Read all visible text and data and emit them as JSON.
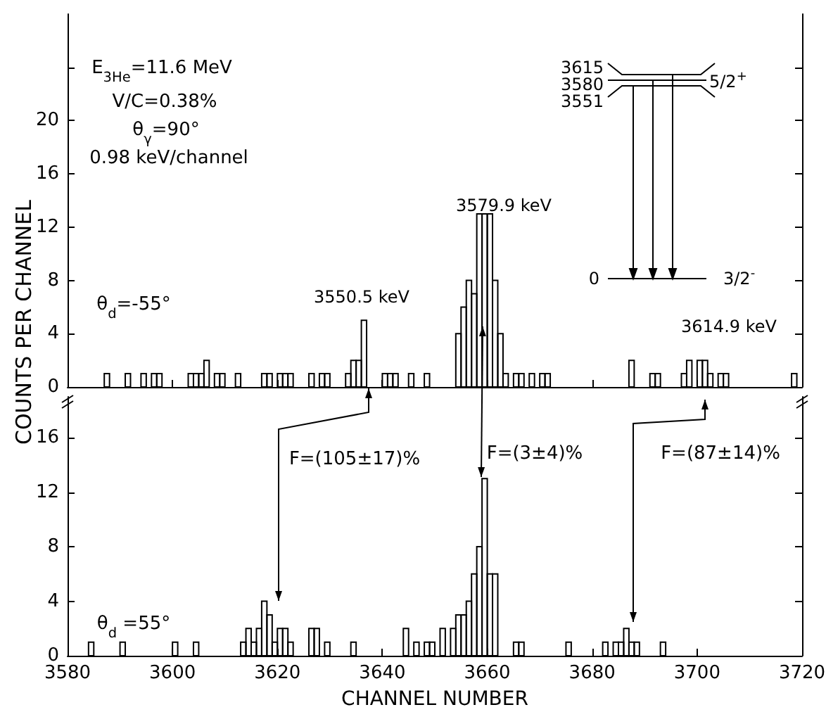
{
  "chart_data": [
    {
      "type": "histogram",
      "ylabel": "COUNTS PER CHANNEL",
      "color": "#000000",
      "grid": false,
      "tick_labels": "y",
      "bins": [
        3580,
        3581,
        3582,
        3583,
        3584,
        3585,
        3586,
        3587,
        3588,
        3589,
        3590,
        3591,
        3592,
        3593,
        3594,
        3595,
        3596,
        3597,
        3598,
        3599,
        3600,
        3601,
        3602,
        3603,
        3604,
        3605,
        3606,
        3607,
        3608,
        3609,
        3610,
        3611,
        3612,
        3613,
        3614,
        3615,
        3616,
        3617,
        3618,
        3619,
        3620,
        3621,
        3622,
        3623,
        3624,
        3625,
        3626,
        3627,
        3628,
        3629,
        3630,
        3631,
        3632,
        3633,
        3634,
        3635,
        3636,
        3637,
        3638,
        3639,
        3640,
        3641,
        3642,
        3643,
        3644,
        3645,
        3646,
        3647,
        3648,
        3649,
        3650,
        3651,
        3652,
        3653,
        3654,
        3655,
        3656,
        3657,
        3658,
        3659,
        3660,
        3661,
        3662,
        3663,
        3664,
        3665,
        3666,
        3667,
        3668,
        3669,
        3670,
        3671,
        3672,
        3673,
        3674,
        3675,
        3676,
        3677,
        3678,
        3679,
        3680,
        3681,
        3682,
        3683,
        3684,
        3685,
        3686,
        3687,
        3688,
        3689,
        3690,
        3691,
        3692,
        3693,
        3694,
        3695,
        3696,
        3697,
        3698,
        3699,
        3700,
        3701,
        3702,
        3703,
        3704,
        3705,
        3706,
        3707,
        3708,
        3709,
        3710,
        3711,
        3712,
        3713,
        3714,
        3715,
        3716,
        3717,
        3718,
        3719,
        3720
      ],
      "values": [
        0,
        0,
        0,
        0,
        0,
        0,
        0,
        1,
        0,
        0,
        0,
        1,
        0,
        0,
        1,
        0,
        1,
        1,
        0,
        0,
        0,
        0,
        0,
        1,
        1,
        1,
        2,
        0,
        1,
        1,
        0,
        0,
        1,
        0,
        0,
        0,
        0,
        1,
        1,
        0,
        1,
        1,
        1,
        0,
        0,
        0,
        1,
        0,
        1,
        1,
        0,
        0,
        0,
        1,
        2,
        2,
        5,
        0,
        0,
        0,
        1,
        1,
        1,
        0,
        0,
        1,
        0,
        0,
        1,
        0,
        0,
        0,
        0,
        0,
        4,
        6,
        8,
        7,
        13,
        13,
        13,
        8,
        4,
        1,
        0,
        1,
        1,
        0,
        1,
        0,
        1,
        1,
        0,
        0,
        0,
        0,
        0,
        0,
        0,
        0,
        0,
        0,
        0,
        0,
        0,
        0,
        0,
        2,
        0,
        0,
        0,
        1,
        1,
        0,
        0,
        0,
        0,
        1,
        2,
        0,
        2,
        2,
        1,
        0,
        1,
        1,
        0,
        0,
        0,
        0,
        0,
        0,
        0,
        0,
        0,
        0,
        0,
        0,
        1,
        0
      ],
      "xlim": [
        3580,
        3720
      ],
      "xticks": [
        {
          "value": 3580,
          "label": null
        },
        {
          "value": 3600,
          "label": null
        },
        {
          "value": 3620,
          "label": null
        },
        {
          "value": 3640,
          "label": null
        },
        {
          "value": 3660,
          "label": null
        },
        {
          "value": 3680,
          "label": null
        },
        {
          "value": 3700,
          "label": null
        },
        {
          "value": 3720,
          "label": null
        }
      ],
      "ylim": [
        0,
        28
      ],
      "yticks": [
        0,
        4,
        8,
        12,
        16,
        20,
        {
          "value": 24,
          "label": null
        }
      ],
      "annotations": [
        "E$_{3He}$=11.6 MeV",
        "V/C=0.38%",
        "θ$_{γ}$=90°",
        "0.98 keV/channel",
        "θ$_{d}$=-55°",
        "3550.5 keV",
        "3579.9 keV",
        "3614.9 keV",
        "3615",
        "3580",
        "3551",
        "5/2$^{+}$",
        "0",
        "3/2$^{-}$"
      ]
    },
    {
      "type": "histogram",
      "xlabel": "CHANNEL NUMBER",
      "color": "#000000",
      "grid": false,
      "bins": [
        3580,
        3581,
        3582,
        3583,
        3584,
        3585,
        3586,
        3587,
        3588,
        3589,
        3590,
        3591,
        3592,
        3593,
        3594,
        3595,
        3596,
        3597,
        3598,
        3599,
        3600,
        3601,
        3602,
        3603,
        3604,
        3605,
        3606,
        3607,
        3608,
        3609,
        3610,
        3611,
        3612,
        3613,
        3614,
        3615,
        3616,
        3617,
        3618,
        3619,
        3620,
        3621,
        3622,
        3623,
        3624,
        3625,
        3626,
        3627,
        3628,
        3629,
        3630,
        3631,
        3632,
        3633,
        3634,
        3635,
        3636,
        3637,
        3638,
        3639,
        3640,
        3641,
        3642,
        3643,
        3644,
        3645,
        3646,
        3647,
        3648,
        3649,
        3650,
        3651,
        3652,
        3653,
        3654,
        3655,
        3656,
        3657,
        3658,
        3659,
        3660,
        3661,
        3662,
        3663,
        3664,
        3665,
        3666,
        3667,
        3668,
        3669,
        3670,
        3671,
        3672,
        3673,
        3674,
        3675,
        3676,
        3677,
        3678,
        3679,
        3680,
        3681,
        3682,
        3683,
        3684,
        3685,
        3686,
        3687,
        3688,
        3689,
        3690,
        3691,
        3692,
        3693,
        3694,
        3695,
        3696,
        3697,
        3698,
        3699,
        3700,
        3701,
        3702,
        3703,
        3704,
        3705,
        3706,
        3707,
        3708,
        3709,
        3710,
        3711,
        3712,
        3713,
        3714,
        3715,
        3716,
        3717,
        3718,
        3719,
        3720
      ],
      "values": [
        0,
        0,
        0,
        0,
        1,
        0,
        0,
        0,
        0,
        0,
        1,
        0,
        0,
        0,
        0,
        0,
        0,
        0,
        0,
        0,
        1,
        0,
        0,
        0,
        1,
        0,
        0,
        0,
        0,
        0,
        0,
        0,
        0,
        1,
        2,
        1,
        2,
        4,
        3,
        1,
        2,
        2,
        1,
        0,
        0,
        0,
        2,
        2,
        0,
        1,
        0,
        0,
        0,
        0,
        1,
        0,
        0,
        0,
        0,
        0,
        0,
        0,
        0,
        0,
        2,
        0,
        1,
        0,
        1,
        1,
        0,
        2,
        0,
        2,
        3,
        3,
        4,
        6,
        8,
        13,
        6,
        6,
        0,
        0,
        0,
        1,
        1,
        0,
        0,
        0,
        0,
        0,
        0,
        0,
        0,
        1,
        0,
        0,
        0,
        0,
        0,
        0,
        1,
        0,
        1,
        1,
        2,
        1,
        1,
        0,
        0,
        0,
        0,
        1,
        0,
        0,
        0,
        0,
        0,
        0,
        0,
        0,
        0,
        0,
        0,
        0,
        0,
        0,
        0,
        0,
        0,
        0,
        0,
        0,
        0,
        0,
        0,
        0,
        0,
        0
      ],
      "xlim": [
        3580,
        3720
      ],
      "xticks": [
        3580,
        3600,
        3620,
        3640,
        3660,
        3680,
        3700,
        3720
      ],
      "ylim": [
        0,
        19
      ],
      "yticks": [
        0,
        4,
        8,
        12,
        16
      ],
      "annotations": [
        "θ$_{d}$ =55°",
        "F=(105±17)%",
        "F=(3±4)%",
        "F=(87±14)%"
      ]
    }
  ]
}
